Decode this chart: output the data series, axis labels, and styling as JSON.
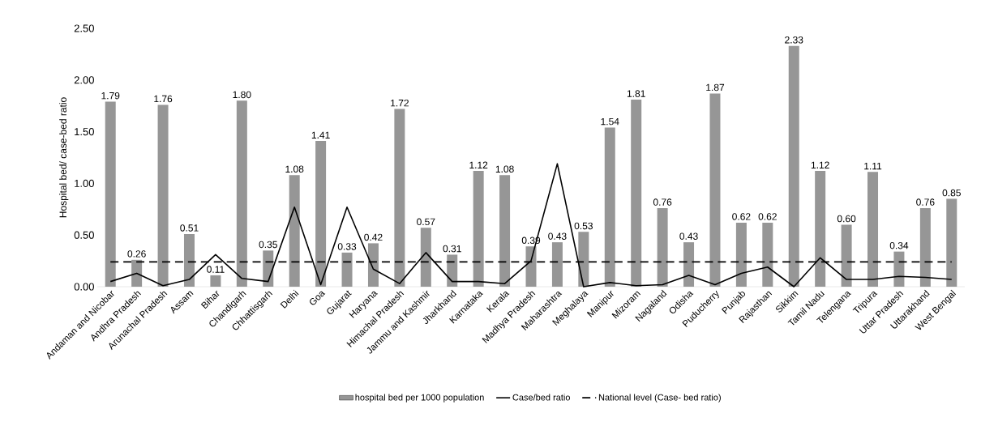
{
  "chart_data": {
    "type": "bar",
    "ylabel": "Hospital bed/ case-bed ratio",
    "categories": [
      "Andaman and Nicobar",
      "Andhra Pradesh",
      "Arunachal Pradesh",
      "Assam",
      "Bihar",
      "Chandigarh",
      "Chhattisgarh",
      "Delhi",
      "Goa",
      "Gujarat",
      "Haryana",
      "Himachal Pradesh",
      "Jammu and Kashmir",
      "Jharkhand",
      "Karnataka",
      "Kerala",
      "Madhya Pradesh",
      "Maharashtra",
      "Meghalaya",
      "Manipur",
      "Mizoram",
      "Nagaland",
      "Odisha",
      "Puducherry",
      "Punjab",
      "Rajasthan",
      "Sikkim",
      "Tamil Nadu",
      "Telengana",
      "Tripura",
      "Uttar Pradesh",
      "Uttarakhand",
      "West Bengal"
    ],
    "series": [
      {
        "name": "hospital bed per 1000 population",
        "color": "#969696",
        "values": [
          1.79,
          0.26,
          1.76,
          0.51,
          0.11,
          1.8,
          0.35,
          1.08,
          1.41,
          0.33,
          0.42,
          1.72,
          0.57,
          0.31,
          1.12,
          1.08,
          0.39,
          0.43,
          0.53,
          1.54,
          1.81,
          0.76,
          0.43,
          1.87,
          0.62,
          0.62,
          2.33,
          1.12,
          0.6,
          1.11,
          0.34,
          0.76,
          0.85
        ],
        "value_labels": [
          "1.79",
          "0.26",
          "1.76",
          "0.51",
          "0.11",
          "1.80",
          "0.35",
          "1.08",
          "1.41",
          "0.33",
          "0.42",
          "1.72",
          "0.57",
          "0.31",
          "1.12",
          "1.08",
          "0.39",
          "0.43",
          "0.53",
          "1.54",
          "1.81",
          "0.76",
          "0.43",
          "1.87",
          "0.62",
          "0.62",
          "2.33",
          "1.12",
          "0.60",
          "1.11",
          "0.34",
          "0.76",
          "0.85"
        ]
      },
      {
        "name": "Case/bed ratio",
        "type": "line",
        "color": "#000000",
        "line_style": "solid",
        "values": [
          0.05,
          0.13,
          0.01,
          0.07,
          0.31,
          0.08,
          0.05,
          0.77,
          0.02,
          0.77,
          0.17,
          0.03,
          0.33,
          0.05,
          0.05,
          0.03,
          0.25,
          1.19,
          0.0,
          0.04,
          0.01,
          0.02,
          0.11,
          0.02,
          0.13,
          0.19,
          0.0,
          0.28,
          0.07,
          0.07,
          0.1,
          0.09,
          0.07
        ]
      },
      {
        "name": "National level (Case- bed ratio)",
        "type": "line",
        "color": "#000000",
        "line_style": "dashed",
        "values": [
          0.24,
          0.24,
          0.24,
          0.24,
          0.24,
          0.24,
          0.24,
          0.24,
          0.24,
          0.24,
          0.24,
          0.24,
          0.24,
          0.24,
          0.24,
          0.24,
          0.24,
          0.24,
          0.24,
          0.24,
          0.24,
          0.24,
          0.24,
          0.24,
          0.24,
          0.24,
          0.24,
          0.24,
          0.24,
          0.24,
          0.24,
          0.24,
          0.24
        ]
      }
    ],
    "ylim": [
      0,
      2.5
    ],
    "yticks": [
      {
        "value": 0,
        "label": "0.00"
      },
      {
        "value": 0.5,
        "label": "0.50"
      },
      {
        "value": 1,
        "label": "1.00"
      },
      {
        "value": 1.5,
        "label": "1.50"
      },
      {
        "value": 2,
        "label": "2.00"
      },
      {
        "value": 2.5,
        "label": "2.50"
      }
    ],
    "grid": false,
    "legend": "bottom"
  }
}
